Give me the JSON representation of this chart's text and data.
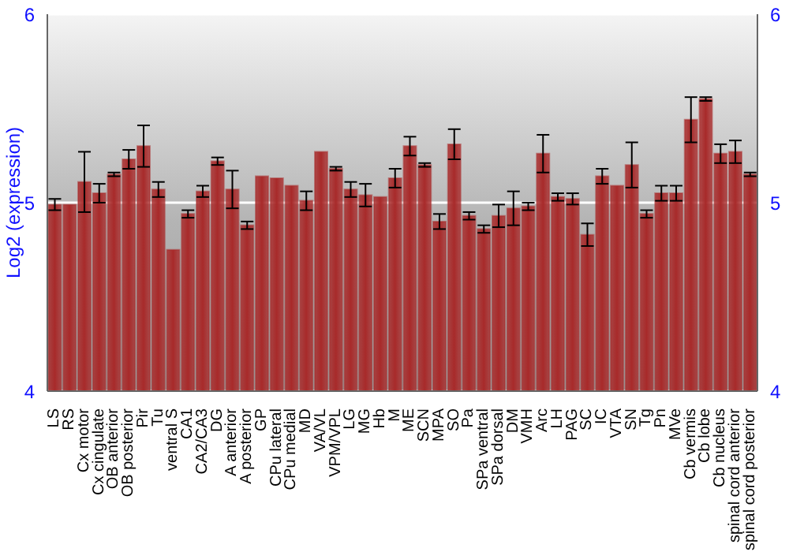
{
  "chart_data": {
    "type": "bar",
    "ylabel": "Log2 (expression)",
    "categories": [
      "LS",
      "RS",
      "Cx motor",
      "Cx cingulate",
      "OB anterior",
      "OB posterior",
      "Pir",
      "Tu",
      "ventral S",
      "CA1",
      "CA2/CA3",
      "DG",
      "A anterior",
      "A posterior",
      "GP",
      "CPu lateral",
      "CPu medial",
      "MD",
      "VA/VL",
      "VPM/VPL",
      "LG",
      "MG",
      "Hb",
      "M",
      "ME",
      "SCN",
      "MPA",
      "SO",
      "Pa",
      "SPa ventral",
      "SPa dorsal",
      "DM",
      "VMH",
      "Arc",
      "LH",
      "PAG",
      "SC",
      "IC",
      "VTA",
      "SN",
      "Tg",
      "Pn",
      "MVe",
      "Cb vermis",
      "Cb lobe",
      "Cb nucleus",
      "spinal cord anterior",
      "spinal cord posterior"
    ],
    "values": [
      4.99,
      4.99,
      5.11,
      5.05,
      5.15,
      5.23,
      5.3,
      5.07,
      4.75,
      4.94,
      5.06,
      5.22,
      5.07,
      4.88,
      5.14,
      5.13,
      5.09,
      5.01,
      5.27,
      5.18,
      5.07,
      5.04,
      5.03,
      5.13,
      5.3,
      5.2,
      4.9,
      5.31,
      4.93,
      4.86,
      4.93,
      4.97,
      4.98,
      5.26,
      5.03,
      5.02,
      4.83,
      5.14,
      5.09,
      5.2,
      4.94,
      5.05,
      5.05,
      5.44,
      5.55,
      5.26,
      5.27,
      5.15
    ],
    "errors": [
      0.03,
      null,
      0.16,
      0.05,
      0.01,
      0.05,
      0.11,
      0.04,
      null,
      0.02,
      0.03,
      0.02,
      0.1,
      0.02,
      null,
      null,
      null,
      0.05,
      null,
      0.01,
      0.04,
      0.06,
      null,
      0.05,
      0.05,
      0.01,
      0.04,
      0.08,
      0.02,
      0.02,
      0.06,
      0.09,
      0.02,
      0.1,
      0.02,
      0.03,
      0.06,
      0.04,
      null,
      0.12,
      0.02,
      0.04,
      0.04,
      0.12,
      0.01,
      0.05,
      0.06,
      0.01
    ],
    "color": "#a82a2a",
    "ylim": [
      4,
      6
    ],
    "yticks": [
      4,
      5,
      6
    ],
    "y2lim": [
      4,
      6
    ],
    "y2ticks": [
      4,
      5,
      6
    ],
    "grid": "y"
  }
}
